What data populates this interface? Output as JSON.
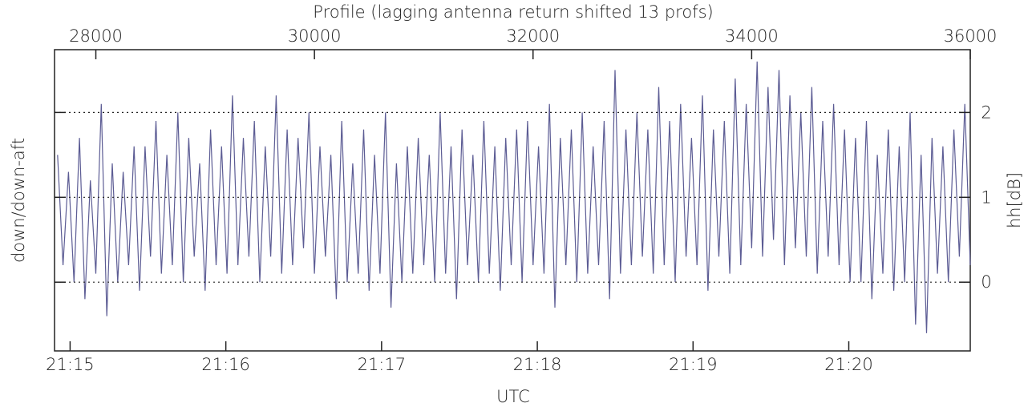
{
  "chart_data": {
    "type": "line",
    "title": "Profile (lagging antenna return shifted 13 profs)",
    "xlabel": "UTC",
    "ylabel": "down/down-aft",
    "y2label": "hh[dB]",
    "xlim": [
      1274.9,
      1280.78
    ],
    "xticks": [
      {
        "value": 1275,
        "label": "21:15"
      },
      {
        "value": 1276,
        "label": "21:16"
      },
      {
        "value": 1277,
        "label": "21:17"
      },
      {
        "value": 1278,
        "label": "21:18"
      },
      {
        "value": 1279,
        "label": "21:19"
      },
      {
        "value": 1280,
        "label": "21:20"
      }
    ],
    "x2lim": [
      27622,
      36000
    ],
    "x2ticks": [
      28000,
      30000,
      32000,
      34000,
      36000
    ],
    "y2lim": [
      -0.81,
      2.74
    ],
    "y2ticks": [
      0,
      1,
      2
    ],
    "grid": true,
    "series": [
      {
        "color": "#5c5c94",
        "axis": "y2",
        "xaxis": "x2",
        "x": [
          27650,
          27700,
          27750,
          27800,
          27850,
          27900,
          27950,
          28000,
          28050,
          28100,
          28150,
          28200,
          28250,
          28300,
          28350,
          28400,
          28450,
          28500,
          28550,
          28600,
          28650,
          28700,
          28750,
          28800,
          28850,
          28900,
          28950,
          29000,
          29050,
          29100,
          29150,
          29200,
          29250,
          29300,
          29350,
          29400,
          29450,
          29500,
          29550,
          29600,
          29650,
          29700,
          29750,
          29800,
          29850,
          29900,
          29950,
          30000,
          30050,
          30100,
          30150,
          30200,
          30250,
          30300,
          30350,
          30400,
          30450,
          30500,
          30550,
          30600,
          30650,
          30700,
          30750,
          30800,
          30850,
          30900,
          30950,
          31000,
          31050,
          31100,
          31150,
          31200,
          31250,
          31300,
          31350,
          31400,
          31450,
          31500,
          31550,
          31600,
          31650,
          31700,
          31750,
          31800,
          31850,
          31900,
          31950,
          32000,
          32050,
          32100,
          32150,
          32200,
          32250,
          32300,
          32350,
          32400,
          32450,
          32500,
          32550,
          32600,
          32650,
          32700,
          32750,
          32800,
          32850,
          32900,
          32950,
          33000,
          33050,
          33100,
          33150,
          33200,
          33250,
          33300,
          33350,
          33400,
          33450,
          33500,
          33550,
          33600,
          33650,
          33700,
          33750,
          33800,
          33850,
          33900,
          33950,
          34000,
          34050,
          34100,
          34150,
          34200,
          34250,
          34300,
          34350,
          34400,
          34450,
          34500,
          34550,
          34600,
          34650,
          34700,
          34750,
          34800,
          34850,
          34900,
          34950,
          35000,
          35050,
          35100,
          35150,
          35200,
          35250,
          35300,
          35350,
          35400,
          35450,
          35500,
          35550,
          35600,
          35650,
          35700,
          35750,
          35800,
          35850,
          35900,
          35950,
          36000
        ],
        "values": [
          1.5,
          0.2,
          1.3,
          0.0,
          1.7,
          -0.2,
          1.2,
          0.1,
          2.1,
          -0.4,
          1.4,
          0.0,
          1.3,
          0.2,
          1.6,
          -0.1,
          1.6,
          0.3,
          1.9,
          0.1,
          1.5,
          0.2,
          2.0,
          0.0,
          1.7,
          0.3,
          1.4,
          -0.1,
          1.8,
          0.2,
          1.6,
          0.1,
          2.2,
          0.2,
          1.7,
          0.3,
          1.9,
          0.0,
          1.6,
          0.3,
          2.2,
          0.1,
          1.8,
          0.2,
          1.7,
          0.4,
          2.0,
          0.1,
          1.6,
          0.3,
          1.5,
          -0.2,
          1.9,
          0.0,
          1.4,
          0.1,
          1.8,
          -0.1,
          1.5,
          0.1,
          2.0,
          -0.3,
          1.4,
          0.0,
          1.6,
          0.1,
          1.7,
          0.2,
          1.5,
          0.0,
          2.0,
          0.1,
          1.6,
          -0.2,
          1.8,
          0.2,
          1.5,
          0.0,
          1.9,
          0.1,
          1.6,
          -0.1,
          1.7,
          0.2,
          1.8,
          0.0,
          1.9,
          0.2,
          1.6,
          0.1,
          2.1,
          -0.3,
          1.7,
          0.2,
          1.8,
          0.0,
          2.0,
          0.1,
          1.6,
          0.2,
          1.9,
          -0.2,
          2.5,
          0.1,
          1.8,
          0.2,
          2.0,
          0.3,
          1.8,
          0.1,
          2.3,
          0.2,
          1.9,
          0.0,
          2.1,
          0.3,
          1.7,
          0.2,
          2.2,
          -0.1,
          1.8,
          0.3,
          1.9,
          0.1,
          2.4,
          0.2,
          2.1,
          0.4,
          2.6,
          0.3,
          2.3,
          0.5,
          2.5,
          0.2,
          2.2,
          0.4,
          2.0,
          0.3,
          2.3,
          0.1,
          1.9,
          0.3,
          2.1,
          0.2,
          1.8,
          0.0,
          1.7,
          0.0,
          1.9,
          -0.2,
          1.5,
          0.1,
          1.8,
          -0.1,
          1.6,
          0.0,
          2.0,
          -0.5,
          1.5,
          -0.6,
          1.7,
          0.1,
          1.6,
          0.0,
          1.8,
          0.3,
          2.1,
          0.2
        ]
      }
    ]
  }
}
